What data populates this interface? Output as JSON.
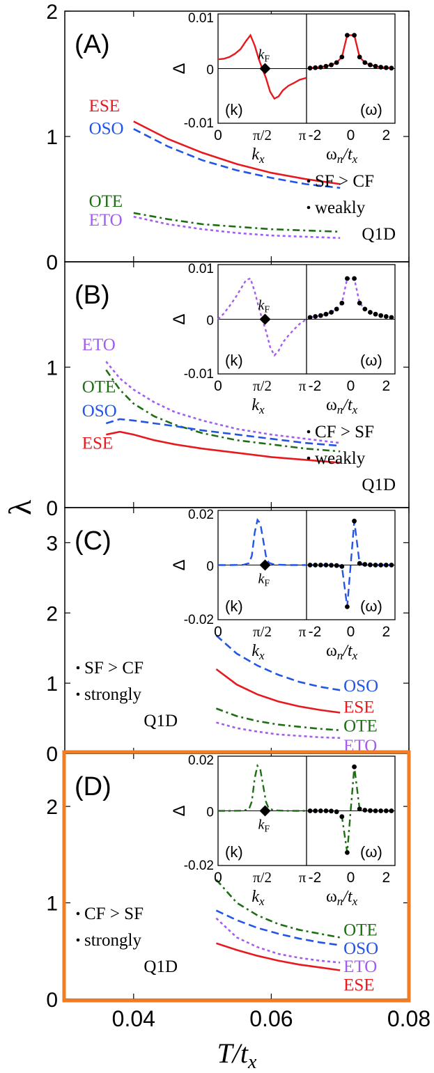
{
  "figure": {
    "ylabel": "λ",
    "xlabel_main": "T",
    "xlabel_sub": "x",
    "xlabel_slash": "/t",
    "x_ticks": [
      "0.04",
      "0.06",
      "0.08"
    ],
    "xlim": [
      0.03,
      0.08
    ],
    "highlight_color": "#F27C22"
  },
  "colors": {
    "ESE": "#E8191E",
    "OSO": "#2255E6",
    "OTE": "#1E6E14",
    "ETO": "#A35CF0",
    "axis": "#000000"
  },
  "chart_data": [
    {
      "type": "line",
      "panel": "(A)",
      "ylim": [
        0,
        2
      ],
      "yticks": [
        {
          "v": 0,
          "label": "0"
        },
        {
          "v": 1,
          "label": "1"
        },
        {
          "v": 2,
          "label": "2"
        }
      ],
      "notes": [
        "SF > CF",
        "weakly",
        "Q1D"
      ],
      "series": [
        {
          "name": "ESE",
          "dash": "solid",
          "x": [
            0.04,
            0.045,
            0.05,
            0.055,
            0.06,
            0.065,
            0.07
          ],
          "y": [
            1.12,
            0.98,
            0.87,
            0.78,
            0.71,
            0.66,
            0.62
          ]
        },
        {
          "name": "OSO",
          "dash": "dash",
          "x": [
            0.04,
            0.045,
            0.05,
            0.055,
            0.06,
            0.065,
            0.07
          ],
          "y": [
            1.06,
            0.92,
            0.81,
            0.73,
            0.67,
            0.62,
            0.59
          ]
        },
        {
          "name": "OTE",
          "dash": "dashdot",
          "x": [
            0.04,
            0.045,
            0.05,
            0.055,
            0.06,
            0.065,
            0.07
          ],
          "y": [
            0.39,
            0.34,
            0.3,
            0.28,
            0.26,
            0.25,
            0.24
          ]
        },
        {
          "name": "ETO",
          "dash": "dot",
          "x": [
            0.04,
            0.045,
            0.05,
            0.055,
            0.06,
            0.065,
            0.07
          ],
          "y": [
            0.36,
            0.3,
            0.26,
            0.23,
            0.21,
            0.2,
            0.19
          ]
        }
      ],
      "labels": [
        {
          "text": "ESE",
          "series": "ESE",
          "x": 0.0335,
          "y": 1.2
        },
        {
          "text": "OSO",
          "series": "OSO",
          "x": 0.0335,
          "y": 1.02
        },
        {
          "text": "OTE",
          "series": "OTE",
          "x": 0.0335,
          "y": 0.44
        },
        {
          "text": "ETO",
          "series": "ETO",
          "x": 0.0335,
          "y": 0.29
        }
      ],
      "inset": {
        "color": "ESE",
        "k": {
          "type": "dipole",
          "dash": "solid",
          "x": [
            0,
            0.2,
            0.4,
            0.6,
            0.8,
            1.0,
            1.15,
            1.3,
            1.45,
            1.5708,
            1.7,
            1.85,
            2.0,
            2.15,
            2.3,
            2.5,
            2.7,
            2.9,
            3.14
          ],
          "y": [
            0.002,
            0.0021,
            0.0025,
            0.0032,
            0.0042,
            0.006,
            0.0072,
            0.005,
            0.002,
            0.0,
            -0.002,
            -0.005,
            -0.0065,
            -0.006,
            -0.0047,
            -0.0037,
            -0.0031,
            -0.0024,
            -0.002
          ]
        },
        "w": {
          "type": "even",
          "dash": "solid",
          "x": [
            -2.3,
            -2.0,
            -1.7,
            -1.4,
            -1.1,
            -0.8,
            -0.5,
            -0.2,
            0.2,
            0.5,
            0.8,
            1.1,
            1.4,
            1.7,
            2.0,
            2.3
          ],
          "y": [
            0.0001,
            0.0002,
            0.0003,
            0.0005,
            0.0008,
            0.0013,
            0.0025,
            0.0072,
            0.0072,
            0.0025,
            0.0013,
            0.0008,
            0.0005,
            0.0003,
            0.0002,
            0.0001
          ]
        },
        "yticks": [
          "0.01",
          "0",
          "-0.01"
        ],
        "ymax": 0.01
      }
    },
    {
      "type": "line",
      "panel": "(B)",
      "ylim": [
        0,
        1.75
      ],
      "yticks": [
        {
          "v": 0,
          "label": "0"
        },
        {
          "v": 1,
          "label": "1"
        }
      ],
      "notes": [
        "CF > SF",
        "weakly",
        "Q1D"
      ],
      "series": [
        {
          "name": "ETO",
          "dash": "dot",
          "x": [
            0.036,
            0.038,
            0.04,
            0.043,
            0.046,
            0.05,
            0.055,
            0.06,
            0.065,
            0.07
          ],
          "y": [
            1.04,
            0.92,
            0.84,
            0.75,
            0.68,
            0.62,
            0.56,
            0.52,
            0.49,
            0.46
          ]
        },
        {
          "name": "OTE",
          "dash": "dashdot",
          "x": [
            0.036,
            0.038,
            0.04,
            0.043,
            0.046,
            0.05,
            0.055,
            0.06,
            0.065,
            0.07
          ],
          "y": [
            0.98,
            0.84,
            0.74,
            0.65,
            0.59,
            0.53,
            0.48,
            0.45,
            0.42,
            0.4
          ]
        },
        {
          "name": "OSO",
          "dash": "dash",
          "x": [
            0.036,
            0.038,
            0.04,
            0.043,
            0.046,
            0.05,
            0.055,
            0.06,
            0.065,
            0.07
          ],
          "y": [
            0.6,
            0.63,
            0.62,
            0.6,
            0.58,
            0.55,
            0.52,
            0.49,
            0.46,
            0.44
          ]
        },
        {
          "name": "ESE",
          "dash": "solid",
          "x": [
            0.036,
            0.038,
            0.04,
            0.043,
            0.046,
            0.05,
            0.055,
            0.06,
            0.065,
            0.07
          ],
          "y": [
            0.52,
            0.54,
            0.52,
            0.48,
            0.45,
            0.42,
            0.39,
            0.36,
            0.34,
            0.32
          ]
        }
      ],
      "labels": [
        {
          "text": "ETO",
          "series": "ETO",
          "x": 0.0325,
          "y": 1.12
        },
        {
          "text": "OTE",
          "series": "OTE",
          "x": 0.0325,
          "y": 0.82
        },
        {
          "text": "OSO",
          "series": "OSO",
          "x": 0.0325,
          "y": 0.65
        },
        {
          "text": "ESE",
          "series": "ESE",
          "x": 0.0325,
          "y": 0.42
        }
      ],
      "inset": {
        "color": "ETO",
        "k": {
          "type": "dipole",
          "dash": "dot",
          "x": [
            0,
            0.2,
            0.4,
            0.6,
            0.8,
            1.0,
            1.15,
            1.3,
            1.45,
            1.5708,
            1.7,
            1.85,
            2.0,
            2.15,
            2.3,
            2.5,
            2.7,
            2.9,
            3.14
          ],
          "y": [
            0.0,
            0.0012,
            0.0028,
            0.0045,
            0.0065,
            0.0085,
            0.0088,
            0.006,
            0.0025,
            0.0,
            -0.0025,
            -0.006,
            -0.0078,
            -0.0068,
            -0.005,
            -0.0035,
            -0.0022,
            -0.001,
            0.0
          ]
        },
        "w": {
          "type": "even",
          "dash": "dot",
          "x": [
            -2.3,
            -2.0,
            -1.7,
            -1.4,
            -1.1,
            -0.8,
            -0.5,
            -0.2,
            0.2,
            0.5,
            0.8,
            1.1,
            1.4,
            1.7,
            2.0,
            2.3
          ],
          "y": [
            0.0004,
            0.0006,
            0.0008,
            0.0011,
            0.0015,
            0.0022,
            0.0035,
            0.0088,
            0.0088,
            0.0035,
            0.0022,
            0.0015,
            0.0011,
            0.0008,
            0.0006,
            0.0004
          ]
        },
        "yticks": [
          "0.01",
          "0",
          "-0.01"
        ],
        "ymax": 0.01
      }
    },
    {
      "type": "line",
      "panel": "(C)",
      "ylim": [
        0,
        3.5
      ],
      "yticks": [
        {
          "v": 0,
          "label": "0"
        },
        {
          "v": 1,
          "label": "1"
        },
        {
          "v": 2,
          "label": "2"
        },
        {
          "v": 3,
          "label": "3"
        }
      ],
      "notes": [
        "SF > CF",
        "strongly",
        "Q1D"
      ],
      "series": [
        {
          "name": "OSO",
          "dash": "dash",
          "x": [
            0.052,
            0.055,
            0.058,
            0.061,
            0.064,
            0.067,
            0.07
          ],
          "y": [
            1.68,
            1.42,
            1.25,
            1.12,
            1.02,
            0.95,
            0.9
          ]
        },
        {
          "name": "ESE",
          "dash": "solid",
          "x": [
            0.052,
            0.055,
            0.058,
            0.061,
            0.064,
            0.067,
            0.07
          ],
          "y": [
            1.2,
            0.98,
            0.84,
            0.74,
            0.67,
            0.62,
            0.58
          ]
        },
        {
          "name": "OTE",
          "dash": "dashdot",
          "x": [
            0.052,
            0.055,
            0.058,
            0.061,
            0.064,
            0.067,
            0.07
          ],
          "y": [
            0.64,
            0.53,
            0.46,
            0.41,
            0.38,
            0.35,
            0.33
          ]
        },
        {
          "name": "ETO",
          "dash": "dot",
          "x": [
            0.052,
            0.055,
            0.058,
            0.061,
            0.064,
            0.067,
            0.07
          ],
          "y": [
            0.44,
            0.36,
            0.31,
            0.27,
            0.25,
            0.23,
            0.22
          ]
        }
      ],
      "labels": [
        {
          "text": "OSO",
          "series": "OSO",
          "x": 0.0705,
          "y": 0.88
        },
        {
          "text": "ESE",
          "series": "ESE",
          "x": 0.0705,
          "y": 0.58
        },
        {
          "text": "OTE",
          "series": "OTE",
          "x": 0.0705,
          "y": 0.31
        },
        {
          "text": "ETO",
          "series": "ETO",
          "x": 0.0705,
          "y": 0.03
        }
      ],
      "inset": {
        "color": "OSO",
        "k": {
          "type": "peak",
          "dash": "dash",
          "x": [
            0,
            0.5,
            0.9,
            1.1,
            1.2,
            1.3,
            1.4,
            1.5,
            1.6,
            1.7,
            1.8,
            2.0,
            2.5,
            3.14
          ],
          "y": [
            0.0,
            0.0,
            0.0001,
            0.0008,
            0.004,
            0.014,
            0.0195,
            0.018,
            0.011,
            0.004,
            0.001,
            0.0002,
            0.0,
            0.0
          ]
        },
        "w": {
          "type": "odd",
          "dash": "dash",
          "x": [
            -2.3,
            -2.0,
            -1.7,
            -1.4,
            -1.1,
            -0.8,
            -0.5,
            -0.2,
            0.2,
            0.5,
            0.8,
            1.1,
            1.4,
            1.7,
            2.0,
            2.3
          ],
          "y": [
            0.0,
            0.0,
            0.0,
            0.0,
            -0.0001,
            -0.0002,
            -0.0006,
            -0.018,
            0.019,
            0.0007,
            0.0003,
            0.0001,
            0.0,
            0.0,
            0.0,
            0.0
          ]
        },
        "yticks": [
          "0.02",
          "0",
          "-0.02"
        ],
        "ymax": 0.02
      }
    },
    {
      "type": "line",
      "panel": "(D)",
      "ylim": [
        0,
        2.55
      ],
      "yticks": [
        {
          "v": 0,
          "label": "0"
        },
        {
          "v": 1,
          "label": "1"
        },
        {
          "v": 2,
          "label": "2"
        }
      ],
      "notes": [
        "CF > SF",
        "strongly",
        "Q1D"
      ],
      "series": [
        {
          "name": "OTE",
          "dash": "dashdot",
          "x": [
            0.052,
            0.055,
            0.058,
            0.061,
            0.064,
            0.067,
            0.07
          ],
          "y": [
            1.24,
            1.0,
            0.87,
            0.78,
            0.72,
            0.68,
            0.64
          ]
        },
        {
          "name": "OSO",
          "dash": "dash",
          "x": [
            0.052,
            0.055,
            0.058,
            0.061,
            0.064,
            0.067,
            0.07
          ],
          "y": [
            0.92,
            0.82,
            0.74,
            0.68,
            0.63,
            0.59,
            0.56
          ]
        },
        {
          "name": "ETO",
          "dash": "dot",
          "x": [
            0.052,
            0.055,
            0.058,
            0.061,
            0.064,
            0.067,
            0.07
          ],
          "y": [
            0.84,
            0.64,
            0.54,
            0.47,
            0.43,
            0.4,
            0.38
          ]
        },
        {
          "name": "ESE",
          "dash": "solid",
          "x": [
            0.052,
            0.055,
            0.058,
            0.061,
            0.064,
            0.067,
            0.07
          ],
          "y": [
            0.58,
            0.51,
            0.45,
            0.4,
            0.36,
            0.33,
            0.3
          ]
        }
      ],
      "labels": [
        {
          "text": "OTE",
          "series": "OTE",
          "x": 0.0705,
          "y": 0.66
        },
        {
          "text": "OSO",
          "series": "OSO",
          "x": 0.0705,
          "y": 0.47
        },
        {
          "text": "ETO",
          "series": "ETO",
          "x": 0.0705,
          "y": 0.28
        },
        {
          "text": "ESE",
          "series": "ESE",
          "x": 0.0705,
          "y": 0.09
        }
      ],
      "inset": {
        "color": "OTE",
        "k": {
          "type": "peak",
          "dash": "dashdot",
          "x": [
            0,
            0.5,
            0.9,
            1.1,
            1.2,
            1.3,
            1.4,
            1.5,
            1.6,
            1.7,
            1.8,
            2.0,
            2.5,
            3.14
          ],
          "y": [
            0.0,
            0.0,
            0.0001,
            0.0008,
            0.004,
            0.014,
            0.0195,
            0.018,
            0.011,
            0.004,
            0.001,
            0.0002,
            0.0,
            0.0
          ]
        },
        "w": {
          "type": "odd",
          "dash": "dashdot",
          "x": [
            -2.3,
            -2.0,
            -1.7,
            -1.4,
            -1.1,
            -0.8,
            -0.5,
            -0.2,
            0.2,
            0.5,
            0.8,
            1.1,
            1.4,
            1.7,
            2.0,
            2.3
          ],
          "y": [
            0.0,
            0.0,
            0.0,
            0.0,
            -0.0001,
            -0.0004,
            -0.0025,
            -0.018,
            0.019,
            0.0008,
            0.0003,
            0.0001,
            0.0,
            0.0,
            0.0,
            0.0
          ]
        },
        "yticks": [
          "0.02",
          "0",
          "-0.02"
        ],
        "ymax": 0.02
      }
    }
  ],
  "inset_labels": {
    "delta": "Δ",
    "k_panel": "(k)",
    "w_panel": "(ω)",
    "kF": "k",
    "kF_sub": "F",
    "k_ticks": [
      "0",
      "π/2",
      "π"
    ],
    "w_ticks": [
      "-2",
      "0",
      "2"
    ],
    "k_axis": "k",
    "k_axis_sub": "x",
    "w_axis": "ω",
    "w_axis_sub": "n",
    "w_axis_rest": "/t",
    "w_axis_sub2": "x"
  }
}
